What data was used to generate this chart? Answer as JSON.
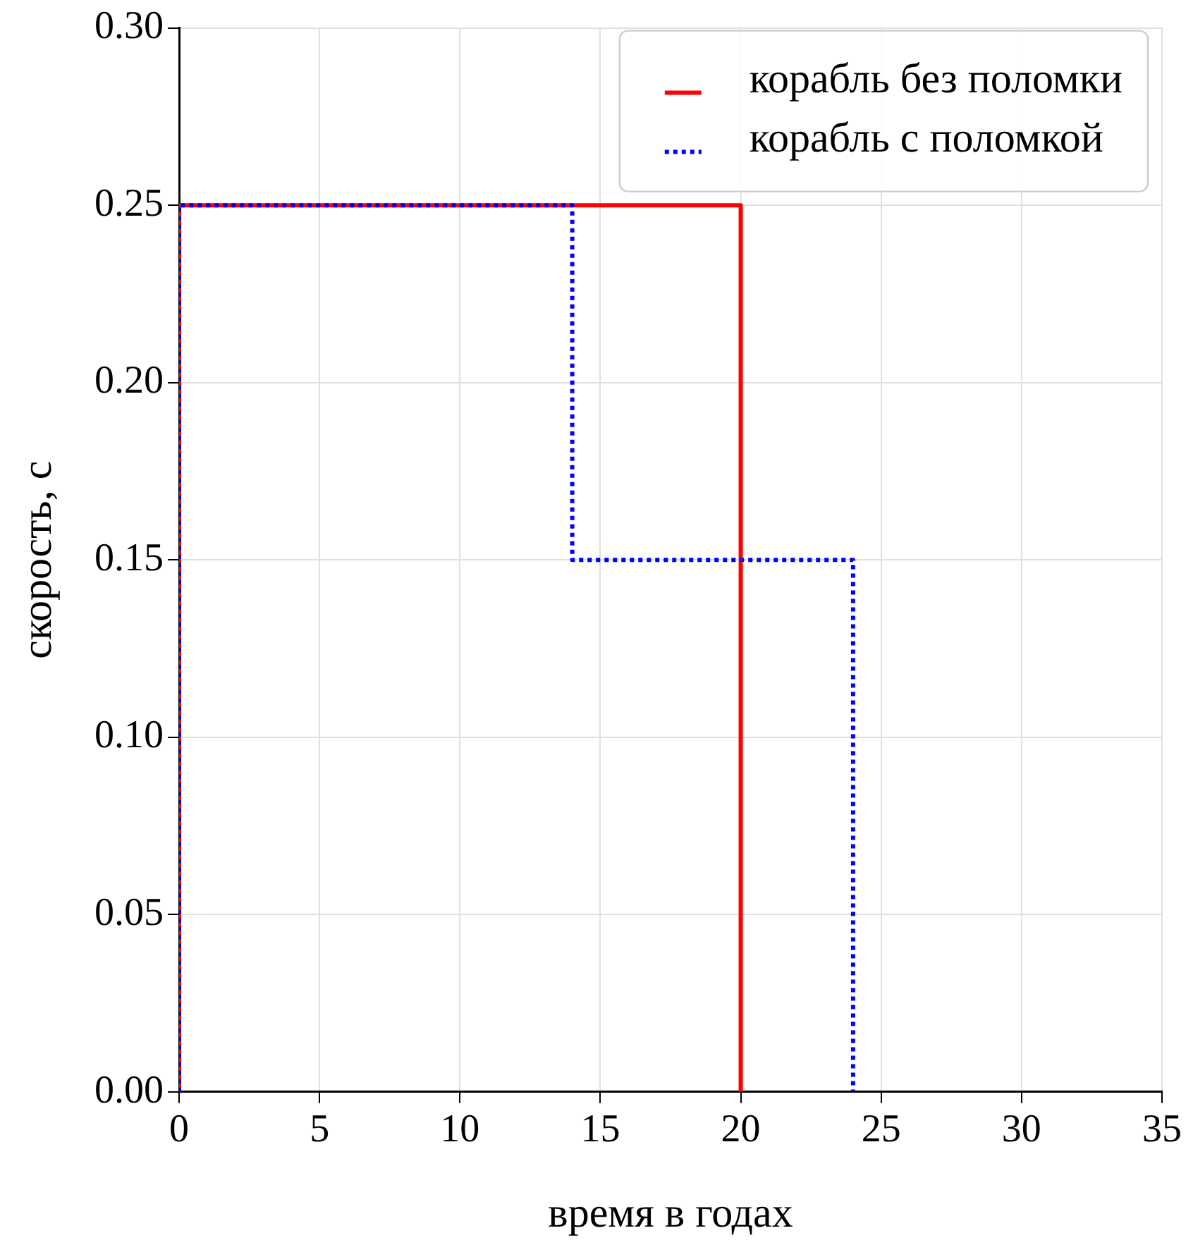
{
  "chart_data": {
    "type": "line",
    "xlabel": "время в годах",
    "ylabel": "скорость, c",
    "xlim": [
      0,
      35
    ],
    "xticks": [
      0,
      5,
      10,
      15,
      20,
      25,
      30,
      35
    ],
    "ylim": [
      0,
      0.3
    ],
    "yticks": [
      {
        "value": 0,
        "label": "0.00"
      },
      {
        "value": 0.05,
        "label": "0.05"
      },
      {
        "value": 0.1,
        "label": "0.10"
      },
      {
        "value": 0.15,
        "label": "0.15"
      },
      {
        "value": 0.2,
        "label": "0.20"
      },
      {
        "value": 0.25,
        "label": "0.25"
      },
      {
        "value": 0.3,
        "label": "0.30"
      }
    ],
    "grid": true,
    "legend": "top right",
    "marker": "none",
    "series": [
      {
        "name": "корабль без поломки",
        "color": "#ff0000",
        "line_style": "solid",
        "x": [
          0,
          0,
          20,
          20
        ],
        "values": [
          0,
          0.25,
          0.25,
          0
        ]
      },
      {
        "name": "корабль с поломкой",
        "color": "#0000ff",
        "line_style": "dotted",
        "x": [
          0,
          0,
          14,
          14,
          24,
          24
        ],
        "values": [
          0,
          0.25,
          0.25,
          0.15,
          0.15,
          0
        ]
      }
    ]
  }
}
